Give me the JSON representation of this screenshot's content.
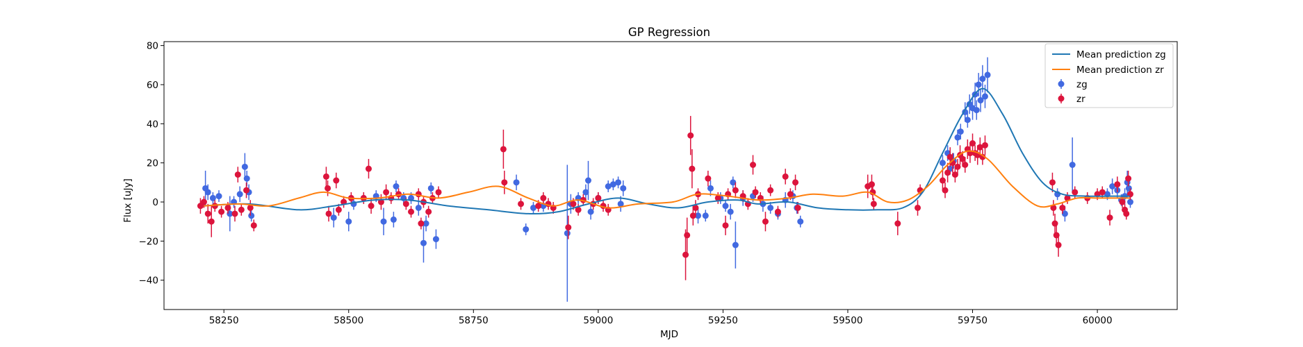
{
  "chart_data": {
    "type": "scatter",
    "title": "GP Regression",
    "xlabel": "MJD",
    "ylabel": "Flux [uJy]",
    "xlim": [
      58130,
      60160
    ],
    "ylim": [
      -55,
      82
    ],
    "xticks": [
      58250,
      58500,
      58750,
      59000,
      59250,
      59500,
      59750,
      60000
    ],
    "yticks": [
      -40,
      -20,
      0,
      20,
      40,
      60,
      80
    ],
    "grid": false,
    "legend_position": "top-right",
    "colors": {
      "zg": "#4169e1",
      "zr": "#dc143c",
      "mean_zg": "#1f77b4",
      "mean_zr": "#ff7f0e"
    },
    "lines": [
      {
        "name": "Mean prediction zg",
        "color": "#1f77b4",
        "x": [
          58210,
          58300,
          58400,
          58470,
          58550,
          58620,
          58700,
          58780,
          58860,
          58920,
          58980,
          59040,
          59100,
          59160,
          59220,
          59280,
          59320,
          59380,
          59440,
          59500,
          59560,
          59610,
          59650,
          59690,
          59730,
          59770,
          59810,
          59850,
          59890,
          59930,
          59980,
          60030,
          60065
        ],
        "y": [
          -2,
          -1,
          -4,
          -2,
          1,
          1,
          -2,
          -4,
          -6,
          -5,
          -1,
          2,
          -1,
          -3,
          0,
          1,
          -1,
          0,
          -3,
          -4,
          -4,
          -3,
          5,
          25,
          45,
          58,
          45,
          25,
          10,
          4,
          3,
          3,
          3
        ]
      },
      {
        "name": "Mean prediction zr",
        "color": "#ff7f0e",
        "x": [
          58210,
          58280,
          58340,
          58400,
          58450,
          58500,
          58560,
          58620,
          58680,
          58740,
          58800,
          58860,
          58910,
          58960,
          59020,
          59080,
          59150,
          59200,
          59260,
          59320,
          59380,
          59430,
          59490,
          59540,
          59580,
          59620,
          59660,
          59700,
          59740,
          59780,
          59830,
          59880,
          59920,
          59960,
          60000,
          60065
        ],
        "y": [
          -2,
          -1,
          -2,
          2,
          5,
          2,
          2,
          4,
          2,
          5,
          8,
          2,
          -2,
          1,
          -3,
          -1,
          0,
          4,
          3,
          1,
          2,
          4,
          3,
          5,
          0,
          1,
          8,
          19,
          26,
          22,
          8,
          -2,
          -1,
          2,
          2,
          2
        ]
      }
    ],
    "series": [
      {
        "name": "zg",
        "color": "#4169e1",
        "points": [
          [
            58213,
            7,
            9
          ],
          [
            58218,
            5,
            4
          ],
          [
            58228,
            2,
            3
          ],
          [
            58240,
            3,
            3
          ],
          [
            58262,
            -6,
            9
          ],
          [
            58270,
            0,
            3
          ],
          [
            58282,
            4,
            4
          ],
          [
            58292,
            18,
            7
          ],
          [
            58296,
            12,
            4
          ],
          [
            58300,
            5,
            4
          ],
          [
            58305,
            -7,
            3
          ],
          [
            58470,
            -8,
            5
          ],
          [
            58500,
            -10,
            5
          ],
          [
            58510,
            -1,
            3
          ],
          [
            58530,
            2,
            3
          ],
          [
            58555,
            3,
            3
          ],
          [
            58570,
            -10,
            7
          ],
          [
            58590,
            -9,
            4
          ],
          [
            58595,
            8,
            3
          ],
          [
            58610,
            2,
            3
          ],
          [
            58625,
            2,
            3
          ],
          [
            58640,
            -3,
            4
          ],
          [
            58650,
            -21,
            10
          ],
          [
            58655,
            -11,
            4
          ],
          [
            58665,
            7,
            3
          ],
          [
            58675,
            -19,
            5
          ],
          [
            58836,
            10,
            4
          ],
          [
            58855,
            -14,
            3
          ],
          [
            58870,
            -3,
            3
          ],
          [
            58890,
            -2,
            3
          ],
          [
            58938,
            -16,
            35
          ],
          [
            58945,
            -1,
            5
          ],
          [
            58960,
            2,
            3
          ],
          [
            58975,
            5,
            4
          ],
          [
            58980,
            11,
            10
          ],
          [
            58985,
            -5,
            4
          ],
          [
            59000,
            2,
            3
          ],
          [
            59020,
            8,
            3
          ],
          [
            59030,
            9,
            3
          ],
          [
            59040,
            10,
            3
          ],
          [
            59045,
            -1,
            4
          ],
          [
            59050,
            7,
            4
          ],
          [
            59200,
            -7,
            4
          ],
          [
            59215,
            -7,
            3
          ],
          [
            59225,
            7,
            4
          ],
          [
            59245,
            2,
            3
          ],
          [
            59255,
            -2,
            3
          ],
          [
            59265,
            -5,
            4
          ],
          [
            59270,
            10,
            3
          ],
          [
            59275,
            -22,
            12
          ],
          [
            59290,
            2,
            4
          ],
          [
            59310,
            3,
            3
          ],
          [
            59330,
            -1,
            4
          ],
          [
            59345,
            -3,
            3
          ],
          [
            59360,
            -6,
            3
          ],
          [
            59375,
            1,
            4
          ],
          [
            59390,
            3,
            3
          ],
          [
            59398,
            -3,
            3
          ],
          [
            59405,
            -10,
            3
          ],
          [
            59690,
            20,
            4
          ],
          [
            59700,
            25,
            4
          ],
          [
            59705,
            17,
            3
          ],
          [
            59712,
            21,
            4
          ],
          [
            59720,
            33,
            4
          ],
          [
            59726,
            36,
            4
          ],
          [
            59735,
            46,
            5
          ],
          [
            59740,
            42,
            4
          ],
          [
            59744,
            50,
            5
          ],
          [
            59750,
            48,
            6
          ],
          [
            59755,
            55,
            6
          ],
          [
            59758,
            47,
            5
          ],
          [
            59762,
            60,
            6
          ],
          [
            59766,
            52,
            6
          ],
          [
            59770,
            63,
            7
          ],
          [
            59775,
            54,
            6
          ],
          [
            59780,
            65,
            9
          ],
          [
            59920,
            4,
            3
          ],
          [
            59935,
            -6,
            4
          ],
          [
            59950,
            19,
            14
          ],
          [
            60020,
            4,
            3
          ],
          [
            60030,
            8,
            4
          ],
          [
            60040,
            6,
            4
          ],
          [
            60048,
            1,
            3
          ],
          [
            60055,
            3,
            4
          ],
          [
            60060,
            10,
            6
          ],
          [
            60063,
            7,
            4
          ],
          [
            60066,
            0,
            3
          ]
        ]
      },
      {
        "name": "zr",
        "color": "#dc143c",
        "points": [
          [
            58203,
            -2,
            4
          ],
          [
            58210,
            0,
            3
          ],
          [
            58218,
            -6,
            5
          ],
          [
            58225,
            -10,
            8
          ],
          [
            58232,
            -2,
            3
          ],
          [
            58245,
            -5,
            3
          ],
          [
            58258,
            -3,
            3
          ],
          [
            58272,
            -6,
            4
          ],
          [
            58278,
            14,
            4
          ],
          [
            58285,
            -4,
            3
          ],
          [
            58295,
            6,
            4
          ],
          [
            58303,
            -3,
            4
          ],
          [
            58310,
            -12,
            3
          ],
          [
            58455,
            13,
            5
          ],
          [
            58458,
            7,
            4
          ],
          [
            58460,
            -6,
            4
          ],
          [
            58475,
            11,
            4
          ],
          [
            58480,
            -4,
            3
          ],
          [
            58490,
            0,
            3
          ],
          [
            58505,
            2,
            3
          ],
          [
            58530,
            2,
            3
          ],
          [
            58540,
            17,
            5
          ],
          [
            58545,
            -2,
            4
          ],
          [
            58565,
            0,
            4
          ],
          [
            58575,
            5,
            4
          ],
          [
            58585,
            2,
            3
          ],
          [
            58600,
            4,
            3
          ],
          [
            58615,
            -1,
            3
          ],
          [
            58625,
            -5,
            3
          ],
          [
            58640,
            4,
            3
          ],
          [
            58645,
            -11,
            3
          ],
          [
            58650,
            0,
            3
          ],
          [
            58660,
            -5,
            3
          ],
          [
            58668,
            2,
            3
          ],
          [
            58680,
            5,
            3
          ],
          [
            58810,
            27,
            10
          ],
          [
            58812,
            10,
            6
          ],
          [
            58845,
            -1,
            3
          ],
          [
            58880,
            -2,
            3
          ],
          [
            58890,
            2,
            3
          ],
          [
            58900,
            -1,
            3
          ],
          [
            58910,
            -3,
            3
          ],
          [
            58940,
            -13,
            6
          ],
          [
            58950,
            -1,
            3
          ],
          [
            58960,
            -4,
            3
          ],
          [
            58970,
            1,
            3
          ],
          [
            58990,
            -1,
            3
          ],
          [
            59000,
            2,
            3
          ],
          [
            59010,
            -2,
            3
          ],
          [
            59020,
            -4,
            3
          ],
          [
            59175,
            -27,
            13
          ],
          [
            59178,
            -17,
            9
          ],
          [
            59185,
            34,
            10
          ],
          [
            59188,
            17,
            10
          ],
          [
            59190,
            -7,
            5
          ],
          [
            59195,
            -3,
            4
          ],
          [
            59200,
            4,
            3
          ],
          [
            59220,
            12,
            4
          ],
          [
            59240,
            2,
            3
          ],
          [
            59255,
            -12,
            5
          ],
          [
            59260,
            4,
            3
          ],
          [
            59275,
            6,
            4
          ],
          [
            59290,
            3,
            3
          ],
          [
            59300,
            -1,
            3
          ],
          [
            59310,
            19,
            5
          ],
          [
            59315,
            5,
            3
          ],
          [
            59325,
            2,
            3
          ],
          [
            59335,
            -10,
            5
          ],
          [
            59345,
            6,
            3
          ],
          [
            59360,
            -5,
            3
          ],
          [
            59375,
            13,
            4
          ],
          [
            59385,
            4,
            3
          ],
          [
            59395,
            10,
            4
          ],
          [
            59400,
            -3,
            3
          ],
          [
            59540,
            8,
            6
          ],
          [
            59548,
            9,
            5
          ],
          [
            59550,
            5,
            4
          ],
          [
            59552,
            -1,
            3
          ],
          [
            59600,
            -11,
            6
          ],
          [
            59640,
            -3,
            4
          ],
          [
            59645,
            6,
            3
          ],
          [
            59690,
            11,
            5
          ],
          [
            59695,
            6,
            4
          ],
          [
            59700,
            15,
            5
          ],
          [
            59705,
            23,
            5
          ],
          [
            59710,
            20,
            5
          ],
          [
            59715,
            14,
            4
          ],
          [
            59720,
            18,
            4
          ],
          [
            59725,
            24,
            5
          ],
          [
            59730,
            22,
            4
          ],
          [
            59735,
            19,
            4
          ],
          [
            59740,
            27,
            5
          ],
          [
            59745,
            25,
            5
          ],
          [
            59750,
            30,
            5
          ],
          [
            59755,
            25,
            4
          ],
          [
            59760,
            24,
            5
          ],
          [
            59765,
            28,
            5
          ],
          [
            59770,
            23,
            4
          ],
          [
            59775,
            29,
            5
          ],
          [
            59910,
            10,
            5
          ],
          [
            59912,
            -3,
            4
          ],
          [
            59915,
            -11,
            5
          ],
          [
            59918,
            -17,
            6
          ],
          [
            59922,
            -22,
            6
          ],
          [
            59930,
            -3,
            3
          ],
          [
            59940,
            2,
            3
          ],
          [
            59955,
            5,
            3
          ],
          [
            59980,
            2,
            3
          ],
          [
            60000,
            4,
            3
          ],
          [
            60010,
            5,
            3
          ],
          [
            60025,
            -8,
            4
          ],
          [
            60040,
            9,
            4
          ],
          [
            60050,
            0,
            3
          ],
          [
            60055,
            -4,
            3
          ],
          [
            60058,
            -6,
            3
          ],
          [
            60062,
            12,
            4
          ],
          [
            60066,
            4,
            3
          ]
        ]
      }
    ]
  }
}
